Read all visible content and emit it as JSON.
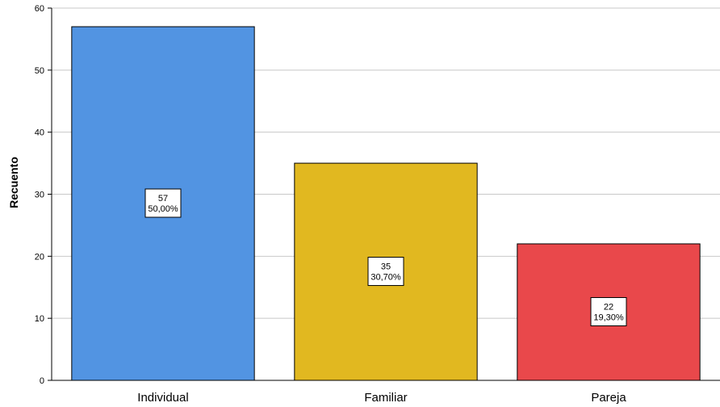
{
  "chart_data": {
    "type": "bar",
    "categories": [
      "Individual",
      "Familiar",
      "Pareja"
    ],
    "values": [
      57,
      35,
      22
    ],
    "data_labels": [
      {
        "count": "57",
        "percent": "50,00%"
      },
      {
        "count": "35",
        "percent": "30,70%"
      },
      {
        "count": "22",
        "percent": "19,30%"
      }
    ],
    "colors": [
      "#5294e2",
      "#e1b820",
      "#e9484b"
    ],
    "xlabel": "",
    "ylabel": "Recuento",
    "ylim": [
      0,
      60
    ],
    "yticks": [
      "0",
      "10",
      "20",
      "30",
      "40",
      "50",
      "60"
    ],
    "grid": true,
    "legend": "none"
  }
}
